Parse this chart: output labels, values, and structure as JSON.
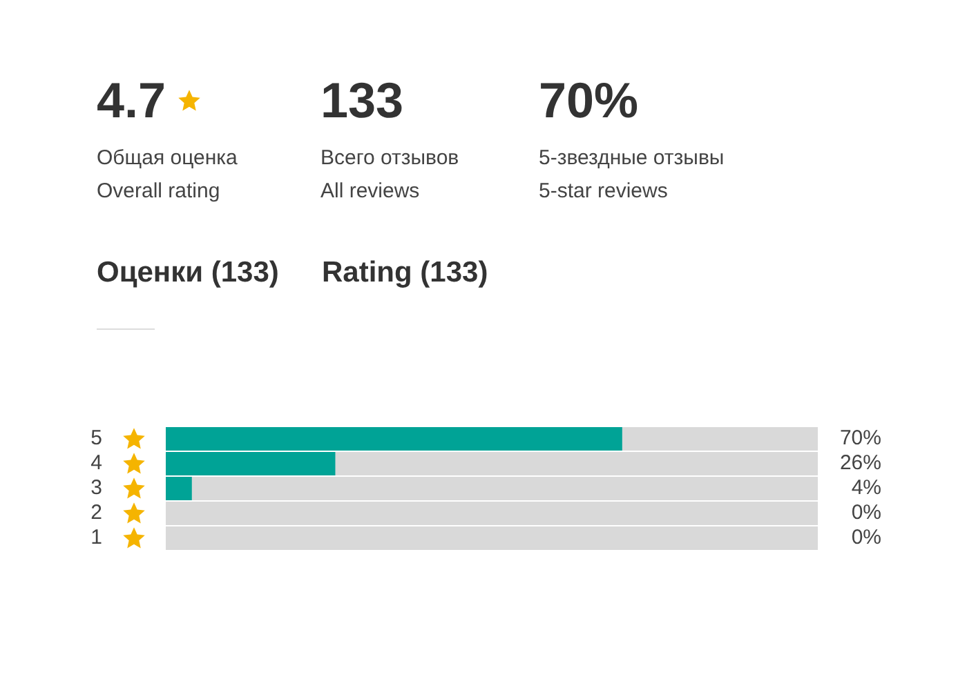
{
  "chart_data": {
    "type": "bar",
    "orientation": "horizontal",
    "title": "Оценки (133)",
    "subtitle": "Rating (133)",
    "annotations": [
      "4.7",
      "Общая оценка",
      "Overall rating",
      "133",
      "Всего отзывов",
      "All reviews",
      "70%",
      "5-звездные отзывы",
      "5-star reviews"
    ],
    "categories": [
      "5",
      "4",
      "3",
      "2",
      "1"
    ],
    "values": [
      70,
      26,
      4,
      0,
      0
    ],
    "value_labels": [
      "70%",
      "26%",
      "4%",
      "0%",
      "0%"
    ],
    "color": "#00a396",
    "xlim": [
      0,
      100
    ],
    "tick_labels": "y",
    "grid": false,
    "legend": false
  }
}
